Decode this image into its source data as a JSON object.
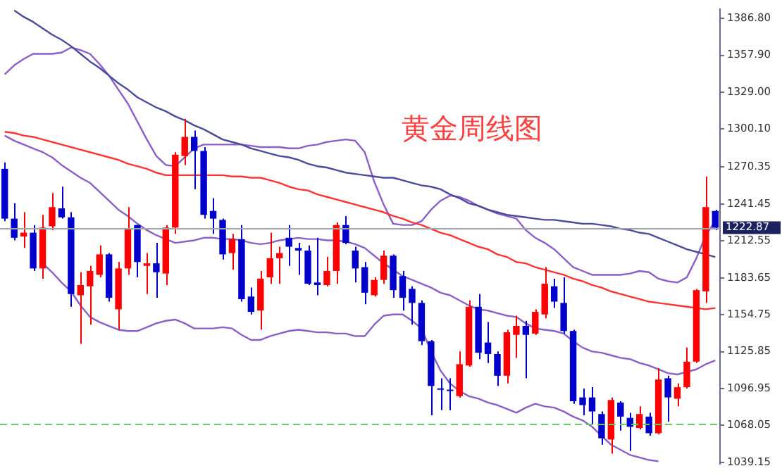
{
  "chart_data": {
    "type": "candlestick",
    "title": "黄金周线图",
    "tick_labels": "y",
    "categories": [
      null,
      null,
      null,
      null,
      null,
      null,
      null,
      null,
      null,
      null,
      null,
      null,
      null,
      null,
      null,
      null,
      null,
      null,
      null,
      null,
      null,
      null,
      null,
      null,
      null,
      null,
      null,
      null,
      null,
      null,
      null,
      null,
      null,
      null,
      null,
      null,
      null,
      null,
      null,
      null,
      null,
      null,
      null,
      null,
      null,
      null,
      null,
      null,
      null,
      null,
      null,
      null,
      null,
      null,
      null,
      null,
      null,
      null,
      null,
      null,
      null,
      null,
      null,
      null,
      null,
      null,
      null,
      null,
      null,
      null,
      null,
      null,
      null,
      null,
      null,
      null
    ],
    "ohlc": [
      [
        1269,
        1274,
        1228,
        1230
      ],
      [
        1230,
        1242,
        1213,
        1215
      ],
      [
        1216,
        1235,
        1207,
        1219
      ],
      [
        1219,
        1225,
        1189,
        1191
      ],
      [
        1191,
        1233,
        1183,
        1223
      ],
      [
        1224,
        1250,
        1221,
        1239
      ],
      [
        1238,
        1255,
        1230,
        1231
      ],
      [
        1231,
        1235,
        1161,
        1171
      ],
      [
        1170,
        1188,
        1132,
        1178
      ],
      [
        1177,
        1193,
        1147,
        1189
      ],
      [
        1186,
        1209,
        1184,
        1202
      ],
      [
        1202,
        1203,
        1165,
        1168
      ],
      [
        1159,
        1196,
        1143,
        1191
      ],
      [
        1191,
        1239,
        1186,
        1222
      ],
      [
        1225,
        1225,
        1184,
        1196
      ],
      [
        1193,
        1203,
        1171,
        1195
      ],
      [
        1195,
        1211,
        1168,
        1188
      ],
      [
        1187,
        1225,
        1178,
        1223
      ],
      [
        1223,
        1282,
        1218,
        1280
      ],
      [
        1279,
        1308,
        1272,
        1294
      ],
      [
        1294,
        1299,
        1253,
        1283
      ],
      [
        1283,
        1286,
        1230,
        1233
      ],
      [
        1236,
        1246,
        1218,
        1230
      ],
      [
        1229,
        1230,
        1198,
        1202
      ],
      [
        1203,
        1218,
        1190,
        1214
      ],
      [
        1214,
        1225,
        1165,
        1167
      ],
      [
        1169,
        1176,
        1155,
        1157
      ],
      [
        1158,
        1189,
        1143,
        1183
      ],
      [
        1184,
        1219,
        1179,
        1199
      ],
      [
        1199,
        1208,
        1179,
        1203
      ],
      [
        1215,
        1225,
        1193,
        1208
      ],
      [
        1207,
        1211,
        1186,
        1205
      ],
      [
        1205,
        1209,
        1178,
        1179
      ],
      [
        1180,
        1215,
        1170,
        1178
      ],
      [
        1178,
        1200,
        1177,
        1189
      ],
      [
        1189,
        1227,
        1179,
        1225
      ],
      [
        1225,
        1232,
        1210,
        1211
      ],
      [
        1205,
        1208,
        1180,
        1191
      ],
      [
        1192,
        1196,
        1163,
        1172
      ],
      [
        1170,
        1184,
        1169,
        1182
      ],
      [
        1182,
        1205,
        1179,
        1201
      ],
      [
        1201,
        1202,
        1168,
        1174
      ],
      [
        1185,
        1189,
        1158,
        1168
      ],
      [
        1175,
        1177,
        1147,
        1164
      ],
      [
        1164,
        1166,
        1131,
        1134
      ],
      [
        1134,
        1135,
        1076,
        1099
      ],
      [
        1097,
        1105,
        1080,
        1096
      ],
      [
        1096,
        1105,
        1080,
        1095
      ],
      [
        1091,
        1126,
        1090,
        1116
      ],
      [
        1115,
        1166,
        1114,
        1161
      ],
      [
        1161,
        1171,
        1120,
        1125
      ],
      [
        1133,
        1149,
        1117,
        1124
      ],
      [
        1124,
        1126,
        1099,
        1107
      ],
      [
        1107,
        1143,
        1101,
        1141
      ],
      [
        1139,
        1154,
        1121,
        1146
      ],
      [
        1146,
        1150,
        1105,
        1139
      ],
      [
        1140,
        1159,
        1139,
        1157
      ],
      [
        1155,
        1192,
        1152,
        1179
      ],
      [
        1177,
        1183,
        1160,
        1165
      ],
      [
        1164,
        1184,
        1140,
        1142
      ],
      [
        1142,
        1143,
        1085,
        1087
      ],
      [
        1090,
        1097,
        1076,
        1084
      ],
      [
        1090,
        1098,
        1069,
        1079
      ],
      [
        1077,
        1079,
        1053,
        1058
      ],
      [
        1057,
        1090,
        1046,
        1088
      ],
      [
        1086,
        1087,
        1064,
        1075
      ],
      [
        1074,
        1078,
        1048,
        1067
      ],
      [
        1066,
        1083,
        1065,
        1077
      ],
      [
        1075,
        1078,
        1060,
        1062
      ],
      [
        1062,
        1113,
        1061,
        1104
      ],
      [
        1105,
        1107,
        1071,
        1090
      ],
      [
        1089,
        1101,
        1083,
        1098
      ],
      [
        1098,
        1129,
        1097,
        1118
      ],
      [
        1118,
        1175,
        1117,
        1174
      ],
      [
        1173,
        1263,
        1164,
        1239
      ],
      [
        1236,
        1237,
        1221,
        1222.87
      ]
    ],
    "colors": [
      "#0000cc",
      "#0000cc",
      "#ff0000",
      "#0000cc",
      "#ff0000",
      "#ff0000",
      "#0000cc",
      "#0000cc",
      "#ff0000",
      "#ff0000",
      "#ff0000",
      "#0000cc",
      "#ff0000",
      "#ff0000",
      "#0000cc",
      "#ff0000",
      "#0000cc",
      "#ff0000",
      "#ff0000",
      "#ff0000",
      "#0000cc",
      "#0000cc",
      "#0000cc",
      "#0000cc",
      "#ff0000",
      "#0000cc",
      "#0000cc",
      "#ff0000",
      "#ff0000",
      "#ff0000",
      "#0000cc",
      "#0000cc",
      "#0000cc",
      "#0000cc",
      "#ff0000",
      "#ff0000",
      "#0000cc",
      "#0000cc",
      "#0000cc",
      "#ff0000",
      "#ff0000",
      "#0000cc",
      "#0000cc",
      "#0000cc",
      "#0000cc",
      "#0000cc",
      "#0000cc",
      "#0000cc",
      "#ff0000",
      "#ff0000",
      "#0000cc",
      "#0000cc",
      "#0000cc",
      "#ff0000",
      "#ff0000",
      "#0000cc",
      "#ff0000",
      "#ff0000",
      "#0000cc",
      "#0000cc",
      "#0000cc",
      "#0000cc",
      "#0000cc",
      "#0000cc",
      "#ff0000",
      "#0000cc",
      "#0000cc",
      "#ff0000",
      "#0000cc",
      "#ff0000",
      "#0000cc",
      "#ff0000",
      "#ff0000",
      "#ff0000",
      "#ff0000",
      "#0000cc"
    ],
    "series": [
      {
        "type": "line",
        "color": "#4b4b9b",
        "values": [
          null,
          1393,
          1388,
          1384,
          1379,
          1374,
          1370,
          1365,
          1359,
          1353,
          1348,
          1342,
          1336,
          1331,
          1325,
          1321,
          1317,
          1314,
          1310,
          1307,
          1303,
          1300,
          1296,
          1292,
          1290,
          1288,
          1285,
          1283,
          1281,
          1279,
          1278,
          1276,
          1273,
          1271,
          1270,
          1268,
          1266,
          1265,
          1264,
          1263,
          1262,
          1262,
          1260,
          1258,
          1256,
          1255,
          1253,
          1249,
          1246,
          1242,
          1240,
          1237,
          1235,
          1233,
          1232,
          1231,
          1230,
          1229,
          1229,
          1228,
          1227,
          1226,
          1226,
          1225,
          1224,
          1222,
          1221,
          1219,
          1218,
          1215,
          1212,
          1209,
          1206,
          1204,
          1202,
          1200
        ]
      },
      {
        "type": "line",
        "color": "#ff3333",
        "values": [
          1298,
          1297,
          1295,
          1294,
          1292,
          1290,
          1288,
          1286,
          1284,
          1282,
          1280,
          1278,
          1276,
          1273,
          1271,
          1269,
          1266,
          1264,
          1264,
          1264,
          1264,
          1264,
          1264,
          1264,
          1263,
          1263,
          1262,
          1262,
          1260,
          1258,
          1255,
          1253,
          1252,
          1249,
          1247,
          1245,
          1243,
          1241,
          1239,
          1237,
          1235,
          1232,
          1230,
          1227,
          1225,
          1222,
          1219,
          1217,
          1214,
          1211,
          1208,
          1206,
          1202,
          1200,
          1196,
          1195,
          1192,
          1190,
          1188,
          1186,
          1183,
          1181,
          1178,
          1176,
          1173,
          1171,
          1169,
          1167,
          1165,
          1164,
          1163,
          1162,
          1161,
          1160,
          1159,
          1160
        ]
      },
      {
        "type": "line",
        "color": "#8a5fc8",
        "values": [
          1343,
          1350,
          1355,
          1359,
          1359,
          1359,
          1360,
          1364,
          1362,
          1359,
          1351,
          1342,
          1331,
          1320,
          1306,
          1292,
          1279,
          1272,
          1271,
          1278,
          1285,
          1288,
          1288,
          1288,
          1288,
          1288,
          1287,
          1286,
          1286,
          1286,
          1285,
          1285,
          1287,
          1288,
          1290,
          1291,
          1292,
          1291,
          1282,
          1259,
          1241,
          1226,
          1225,
          1225,
          1228,
          1237,
          1244,
          1248,
          1247,
          1244,
          1240,
          1237,
          1234,
          1232,
          1230,
          1221,
          1215,
          1211,
          1206,
          1199,
          1192,
          1189,
          1186,
          1186,
          1186,
          1186,
          1187,
          1189,
          1188,
          1183,
          1181,
          1180,
          1184,
          1199,
          1217,
          1228
        ]
      },
      {
        "type": "line",
        "color": "#8a5fc8",
        "values": [
          1295,
          1291,
          1288,
          1285,
          1282,
          1278,
          1272,
          1267,
          1262,
          1258,
          1251,
          1244,
          1237,
          1232,
          1226,
          1221,
          1217,
          1214,
          1211,
          1212,
          1213,
          1215,
          1215,
          1214,
          1214,
          1213,
          1211,
          1210,
          1211,
          1213,
          1214,
          1215,
          1214,
          1214,
          1213,
          1213,
          1212,
          1210,
          1207,
          1201,
          1195,
          1190,
          1185,
          1182,
          1179,
          1176,
          1172,
          1170,
          1166,
          1162,
          1159,
          1158,
          1156,
          1154,
          1153,
          1148,
          1144,
          1143,
          1142,
          1140,
          1134,
          1129,
          1126,
          1125,
          1123,
          1121,
          1120,
          1117,
          1115,
          1112,
          1109,
          1108,
          1110,
          1112,
          1116,
          1119
        ]
      },
      {
        "type": "line",
        "color": "#8a5fc8",
        "values": [
          null,
          null,
          null,
          null,
          1195,
          1188,
          1180,
          1173,
          1162,
          1153,
          1149,
          1146,
          1143,
          1142,
          1142,
          1145,
          1148,
          1150,
          1151,
          1148,
          1144,
          1144,
          1144,
          1145,
          1144,
          1139,
          1135,
          1135,
          1138,
          1140,
          1142,
          1143,
          1142,
          1141,
          1141,
          1140,
          1140,
          1138,
          1138,
          1147,
          1154,
          1155,
          1155,
          1150,
          1144,
          1126,
          1111,
          1101,
          1095,
          1091,
          1089,
          1086,
          1084,
          1081,
          1078,
          1082,
          1085,
          1083,
          1082,
          1079,
          1075,
          1072,
          1067,
          1060,
          1053,
          1049,
          1045,
          1043,
          1041,
          1040,
          null,
          null,
          null,
          null,
          null,
          null
        ]
      }
    ],
    "ylim": [
      1038,
      1394
    ],
    "yticks": [
      {
        "value": 1039.15,
        "label": "1039.15"
      },
      {
        "value": 1068.05,
        "label": "1068.05"
      },
      {
        "value": 1096.95,
        "label": "1096.95"
      },
      {
        "value": 1125.85,
        "label": "1125.85"
      },
      {
        "value": 1154.75,
        "label": "1154.75"
      },
      {
        "value": 1183.65,
        "label": "1183.65"
      },
      {
        "value": 1212.55,
        "label": "1212.55"
      },
      {
        "value": 1241.45,
        "label": "1241.45"
      },
      {
        "value": 1270.35,
        "label": "1270.35"
      },
      {
        "value": 1300.1,
        "label": "1300.10"
      },
      {
        "value": 1329,
        "label": "1329.00"
      },
      {
        "value": 1357.9,
        "label": "1357.90"
      },
      {
        "value": 1386.8,
        "label": "1386.80"
      }
    ],
    "ref_lines": [
      {
        "axis": "y",
        "value": 1222.87,
        "label": "1222.87",
        "color": "#a0a4aa",
        "line_style": "solid"
      },
      {
        "axis": "y",
        "value": 1069,
        "color": "#66cc66",
        "line_style": "dashed"
      }
    ]
  }
}
